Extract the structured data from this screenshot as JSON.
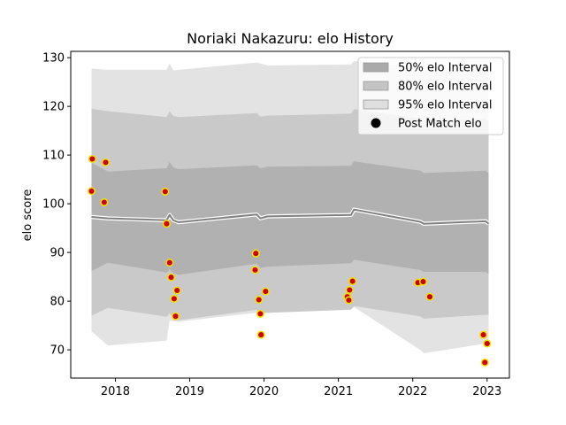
{
  "chart_data": {
    "type": "line",
    "title": "Noriaki Nakazuru: elo History",
    "xlabel": "",
    "ylabel": "elo score",
    "xlim": [
      2017.4,
      2023.3
    ],
    "ylim": [
      64.2,
      131.3
    ],
    "xticks": [
      2018,
      2019,
      2020,
      2021,
      2022,
      2023
    ],
    "xtick_labels": [
      "2018",
      "2019",
      "2020",
      "2021",
      "2022",
      "2023"
    ],
    "yticks": [
      70,
      80,
      90,
      100,
      110,
      120,
      130
    ],
    "ytick_labels": [
      "70",
      "80",
      "90",
      "100",
      "110",
      "120",
      "130"
    ],
    "grid": false,
    "legend_position": "top-right",
    "legend": [
      {
        "label": "50% elo Interval",
        "kind": "band",
        "color": "#aaaaaa"
      },
      {
        "label": "80% elo Interval",
        "kind": "band",
        "color": "#c4c4c4"
      },
      {
        "label": "95% elo Interval",
        "kind": "band",
        "color": "#dedede"
      },
      {
        "label": "Post Match elo",
        "kind": "marker",
        "color": "#000000"
      }
    ],
    "mean": {
      "x": [
        2017.68,
        2017.9,
        2018.69,
        2018.73,
        2018.78,
        2018.85,
        2019.9,
        2019.95,
        2020.05,
        2021.17,
        2021.21,
        2022.1,
        2022.15,
        2022.98,
        2023.02
      ],
      "y": [
        97.3,
        97.0,
        96.6,
        97.7,
        96.6,
        96.2,
        97.8,
        97.0,
        97.4,
        97.7,
        98.8,
        96.3,
        95.9,
        96.4,
        95.9
      ]
    },
    "band_50": {
      "x": [
        2017.68,
        2017.9,
        2018.69,
        2018.73,
        2018.78,
        2018.85,
        2019.9,
        2019.95,
        2020.05,
        2021.17,
        2021.21,
        2022.1,
        2022.15,
        2022.98,
        2023.02
      ],
      "lower": [
        86.2,
        87.9,
        85.9,
        86.6,
        85.7,
        85.4,
        87.7,
        86.8,
        87.1,
        87.8,
        88.5,
        86.4,
        86.0,
        86.0,
        85.6
      ],
      "upper": [
        108.4,
        106.6,
        107.3,
        108.6,
        107.5,
        107.1,
        107.9,
        107.3,
        107.6,
        107.8,
        108.7,
        106.8,
        106.3,
        106.8,
        106.3
      ]
    },
    "band_80": {
      "x": [
        2017.68,
        2017.9,
        2018.69,
        2018.73,
        2018.78,
        2018.85,
        2019.9,
        2019.95,
        2020.05,
        2021.17,
        2021.21,
        2022.1,
        2022.15,
        2022.98,
        2023.02
      ],
      "lower": [
        77.0,
        78.6,
        76.8,
        77.5,
        76.4,
        76.1,
        78.2,
        77.5,
        77.6,
        78.3,
        79.0,
        76.9,
        76.4,
        77.2,
        77.2
      ],
      "upper": [
        119.5,
        119.0,
        117.8,
        119.0,
        118.0,
        117.8,
        118.6,
        117.9,
        118.1,
        118.5,
        119.4,
        117.5,
        117.0,
        117.5,
        117.0
      ]
    },
    "band_95": {
      "x": [
        2017.68,
        2017.9,
        2018.69,
        2018.73,
        2018.78,
        2018.85,
        2019.9,
        2019.95,
        2020.05,
        2021.17,
        2021.21,
        2022.1,
        2022.15,
        2022.98,
        2023.02
      ],
      "lower": [
        73.8,
        70.9,
        71.9,
        76.0,
        75.9,
        75.8,
        77.6,
        77.6,
        77.6,
        78.2,
        78.8,
        70.0,
        69.3,
        71.3,
        71.3
      ],
      "upper": [
        127.8,
        127.5,
        127.5,
        128.8,
        127.4,
        127.5,
        129.0,
        128.8,
        128.4,
        128.6,
        129.3,
        128.0,
        127.5,
        128.1,
        127.7
      ]
    },
    "post_match": {
      "x": [
        2017.68,
        2017.69,
        2017.85,
        2017.87,
        2018.67,
        2018.69,
        2018.73,
        2018.75,
        2018.79,
        2018.81,
        2018.83,
        2019.88,
        2019.89,
        2019.93,
        2019.95,
        2019.96,
        2020.02,
        2021.12,
        2021.14,
        2021.15,
        2021.19,
        2022.07,
        2022.14,
        2022.23,
        2022.95,
        2022.97,
        2023.0
      ],
      "y": [
        102.6,
        109.2,
        100.3,
        108.5,
        102.5,
        95.9,
        87.9,
        84.9,
        80.5,
        76.9,
        82.2,
        86.4,
        89.8,
        80.3,
        77.4,
        73.1,
        82.0,
        80.9,
        80.2,
        82.3,
        84.1,
        83.8,
        84.0,
        80.9,
        73.1,
        67.4,
        71.3
      ]
    },
    "marker_face": "#cc0000",
    "marker_edge": "#f5e100",
    "mean_color": "#808080"
  }
}
